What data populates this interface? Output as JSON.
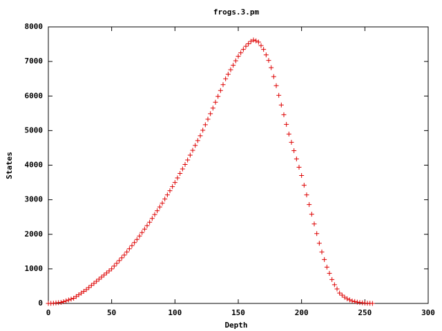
{
  "chart_data": {
    "type": "scatter",
    "title": "frogs.3.pm",
    "x_label": "Depth",
    "y_label": "States",
    "xlim": [
      0,
      300
    ],
    "xticks": [
      0,
      50,
      100,
      150,
      200,
      250,
      300
    ],
    "ylim": [
      0,
      8000
    ],
    "yticks": [
      0,
      1000,
      2000,
      3000,
      4000,
      5000,
      6000,
      7000,
      8000
    ],
    "grid": false,
    "marker": "plus",
    "series": [
      {
        "color": "#dd0000",
        "x": [
          0,
          2,
          4,
          6,
          8,
          10,
          12,
          14,
          16,
          18,
          20,
          22,
          24,
          26,
          28,
          30,
          32,
          34,
          36,
          38,
          40,
          42,
          44,
          46,
          48,
          50,
          52,
          54,
          56,
          58,
          60,
          62,
          64,
          66,
          68,
          70,
          72,
          74,
          76,
          78,
          80,
          82,
          84,
          86,
          88,
          90,
          92,
          94,
          96,
          98,
          100,
          102,
          104,
          106,
          108,
          110,
          112,
          114,
          116,
          118,
          120,
          122,
          124,
          126,
          128,
          130,
          132,
          134,
          136,
          138,
          140,
          142,
          144,
          146,
          148,
          150,
          152,
          154,
          156,
          158,
          160,
          162,
          164,
          166,
          168,
          170,
          172,
          174,
          176,
          178,
          180,
          182,
          184,
          186,
          188,
          190,
          192,
          194,
          196,
          198,
          200,
          202,
          204,
          206,
          208,
          210,
          212,
          214,
          216,
          218,
          220,
          222,
          224,
          226,
          228,
          230,
          232,
          234,
          236,
          238,
          240,
          242,
          244,
          246,
          248,
          250,
          252,
          254,
          256
        ],
        "values": [
          0,
          3,
          8,
          14,
          22,
          30,
          50,
          75,
          100,
          125,
          150,
          200,
          250,
          300,
          350,
          400,
          460,
          520,
          580,
          640,
          700,
          760,
          820,
          880,
          940,
          1000,
          1080,
          1160,
          1240,
          1320,
          1400,
          1490,
          1580,
          1670,
          1760,
          1850,
          1950,
          2050,
          2150,
          2250,
          2350,
          2460,
          2570,
          2680,
          2790,
          2900,
          3020,
          3140,
          3260,
          3380,
          3500,
          3630,
          3760,
          3890,
          4020,
          4150,
          4290,
          4430,
          4570,
          4710,
          4850,
          5010,
          5170,
          5330,
          5490,
          5650,
          5820,
          5990,
          6160,
          6330,
          6500,
          6630,
          6760,
          6890,
          7020,
          7150,
          7250,
          7350,
          7440,
          7510,
          7580,
          7620,
          7595,
          7560,
          7460,
          7350,
          7190,
          7030,
          6820,
          6560,
          6300,
          6020,
          5740,
          5460,
          5180,
          4900,
          4660,
          4420,
          4180,
          3940,
          3700,
          3420,
          3140,
          2860,
          2580,
          2300,
          2020,
          1740,
          1490,
          1270,
          1050,
          870,
          690,
          540,
          420,
          300,
          240,
          180,
          134,
          102,
          70,
          54,
          38,
          26,
          18,
          10,
          7,
          4,
          0
        ]
      }
    ]
  }
}
